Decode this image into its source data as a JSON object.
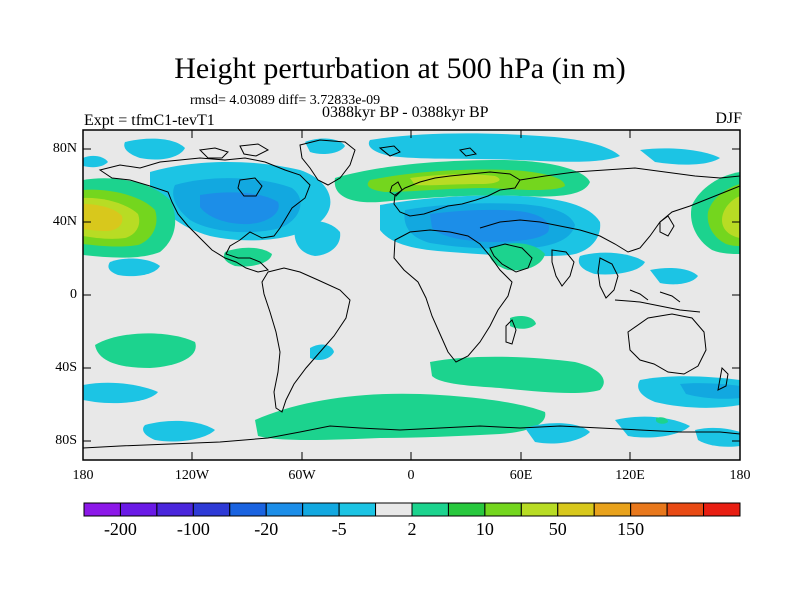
{
  "title": "Height perturbation at 500 hPa (in m)",
  "stats": "rmsd= 4.03089 diff= 3.72833e-09",
  "left_label": "Expt = tfmC1-tevT1",
  "center_label": "0388kyr BP - 0388kyr BP",
  "right_label": "DJF",
  "lat_labels": [
    "80N",
    "40N",
    "0",
    "40S",
    "80S"
  ],
  "lon_labels": [
    "180",
    "120W",
    "60W",
    "0",
    "60E",
    "120E",
    "180"
  ],
  "colorbar": {
    "colors": [
      "#8c18e8",
      "#6a1ae6",
      "#4a26dc",
      "#2e3ad6",
      "#1a63e0",
      "#1c8ee8",
      "#12a8e0",
      "#1cc4e4",
      "#e8e8e8",
      "#1cd38e",
      "#28c83e",
      "#74d61e",
      "#b8dc24",
      "#d8c81c",
      "#e8a21c",
      "#e8781c",
      "#e84a14",
      "#e81e12"
    ],
    "labels": [
      "-200",
      "-100",
      "-20",
      "-5",
      "2",
      "10",
      "50",
      "150"
    ]
  }
}
